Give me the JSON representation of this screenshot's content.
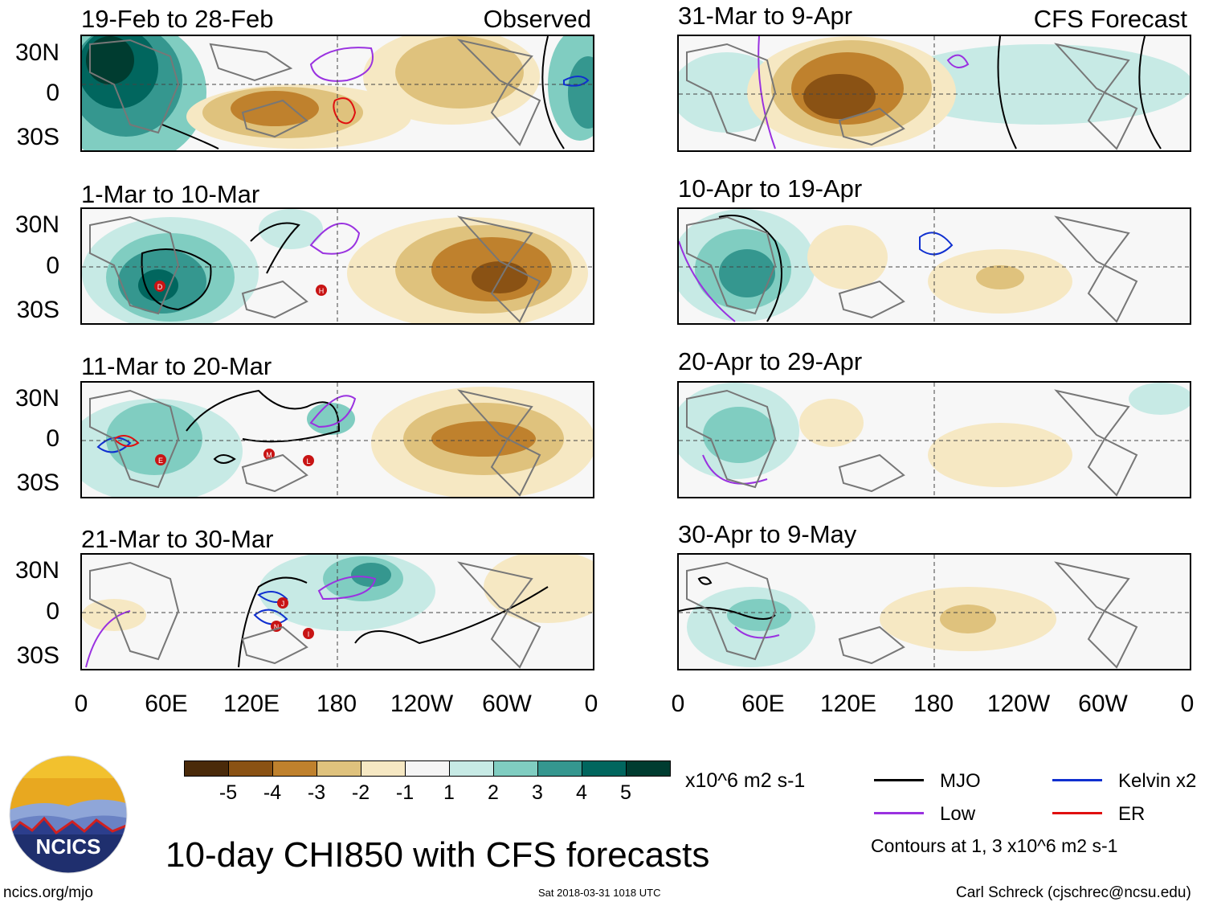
{
  "header": {
    "observed_label": "Observed",
    "forecast_label": "CFS Forecast"
  },
  "panels": {
    "observed": [
      {
        "title": "19-Feb to 28-Feb",
        "storms": []
      },
      {
        "title": "1-Mar to 10-Mar",
        "storms": [
          "D",
          "H"
        ]
      },
      {
        "title": "11-Mar to 20-Mar",
        "storms": [
          "E",
          "M",
          "L"
        ]
      },
      {
        "title": "21-Mar to 30-Mar",
        "storms": [
          "J",
          "N",
          "I"
        ]
      }
    ],
    "forecast": [
      {
        "title": "31-Mar to 9-Apr"
      },
      {
        "title": "10-Apr to 19-Apr"
      },
      {
        "title": "20-Apr to 29-Apr"
      },
      {
        "title": "30-Apr to 9-May"
      }
    ]
  },
  "axes": {
    "lat_ticks": [
      "30N",
      "0",
      "30S"
    ],
    "lon_ticks": [
      "0",
      "60E",
      "120E",
      "180",
      "120W",
      "60W",
      "0"
    ]
  },
  "colorbar": {
    "colors": [
      "#4a2a0a",
      "#8a5214",
      "#bf812d",
      "#dfc27d",
      "#f6e8c3",
      "#f5f5f5",
      "#c7eae5",
      "#80cdc1",
      "#35978f",
      "#01665e",
      "#003c30"
    ],
    "ticks": [
      "-5",
      "-4",
      "-3",
      "-2",
      "-1",
      "1",
      "2",
      "3",
      "4",
      "5"
    ],
    "units": "x10^6 m2 s-1"
  },
  "legend": {
    "items": [
      {
        "label": "MJO",
        "color": "#000000"
      },
      {
        "label": "Kelvin x2",
        "color": "#1030d0"
      },
      {
        "label": "Low",
        "color": "#9a32e0"
      },
      {
        "label": "ER",
        "color": "#e01010"
      }
    ],
    "contour_note": "Contours at 1, 3 x10^6 m2 s-1"
  },
  "logo": {
    "text": "NCICS"
  },
  "footer": {
    "main_title": "10-day CHI850 with CFS forecasts",
    "url": "ncics.org/mjo",
    "timestamp": "Sat 2018-03-31 1018 UTC",
    "credit": "Carl Schreck (cjschrec@ncsu.edu)"
  }
}
